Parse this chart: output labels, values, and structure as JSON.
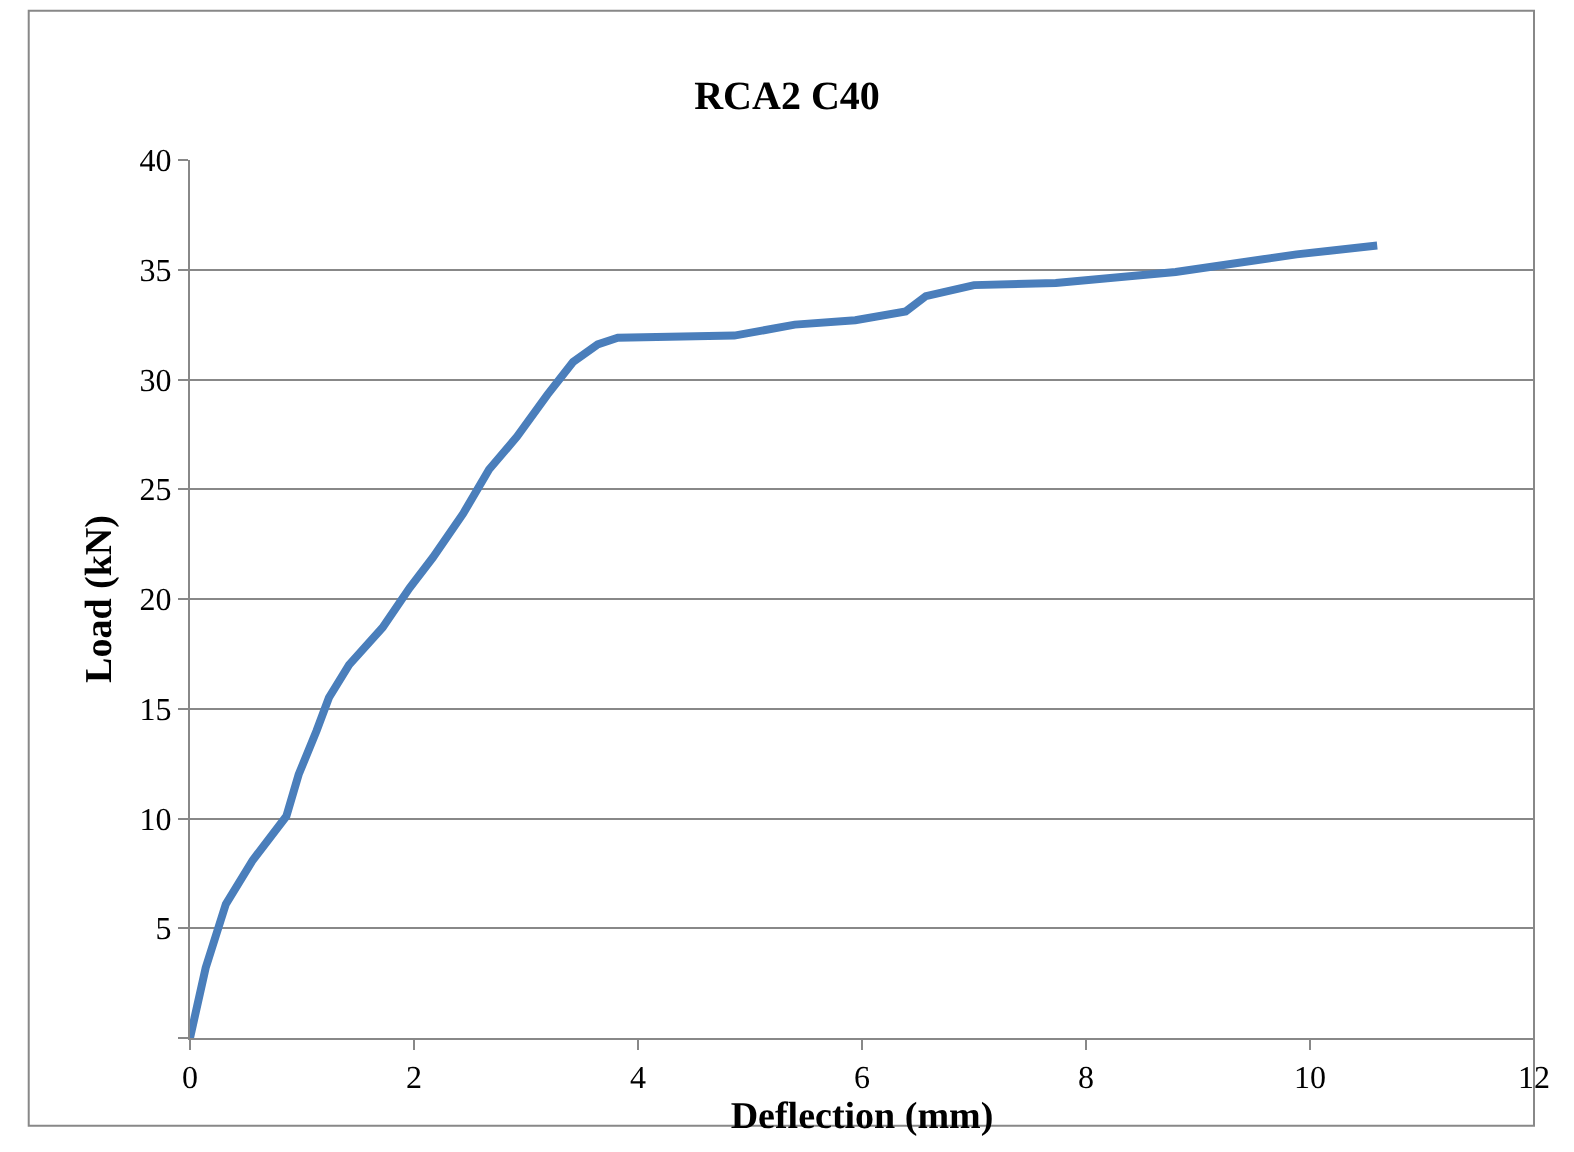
{
  "chart_data": {
    "type": "line",
    "title": "RCA2 C40",
    "xlabel": "Deflection (mm)",
    "ylabel": "Load (kN)",
    "xlim": [
      0,
      12
    ],
    "xticks": [
      0,
      2,
      4,
      6,
      8,
      10,
      12
    ],
    "ylim": [
      0,
      40
    ],
    "yticks": [
      {
        "value": 0,
        "label": null
      },
      5,
      10,
      15,
      20,
      25,
      30,
      35,
      40
    ],
    "grid": "y",
    "legend": false,
    "marker": "none",
    "line_style": "solid",
    "series": [
      {
        "color": "#4a7ebb",
        "x": [
          0,
          0.14,
          0.32,
          0.56,
          0.86,
          0.97,
          1.13,
          1.24,
          1.42,
          1.72,
          1.96,
          2.17,
          2.44,
          2.67,
          2.92,
          3.19,
          3.42,
          3.64,
          3.82,
          4.86,
          5.4,
          5.94,
          6.39,
          6.57,
          7.0,
          7.73,
          8.8,
          9.88,
          10.6
        ],
        "values": [
          0,
          3.2,
          6.1,
          8.1,
          10.1,
          12.0,
          14.0,
          15.5,
          17.0,
          18.7,
          20.5,
          21.9,
          23.9,
          25.9,
          27.4,
          29.3,
          30.8,
          31.6,
          31.9,
          32.0,
          32.5,
          32.7,
          33.1,
          33.8,
          34.3,
          34.4,
          34.9,
          35.7,
          36.1
        ]
      }
    ]
  }
}
